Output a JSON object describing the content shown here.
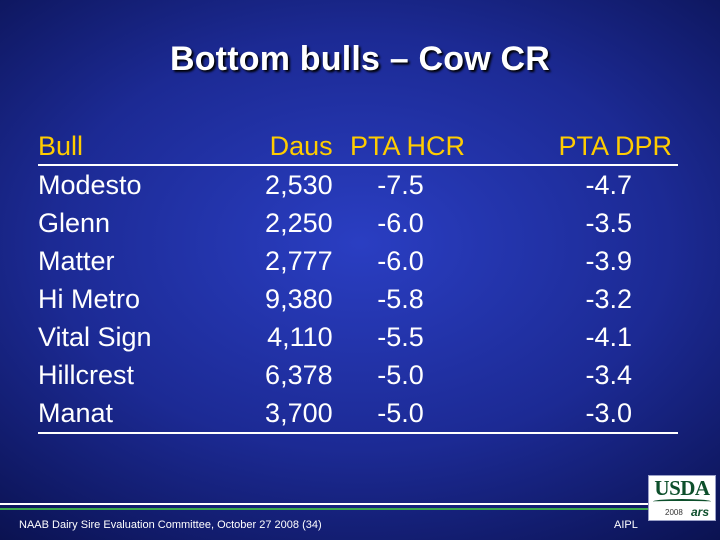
{
  "slide": {
    "title": "Bottom bulls – Cow CR"
  },
  "table": {
    "headers": {
      "bull": "Bull",
      "daus": "Daus",
      "pta_hcr": "PTA HCR",
      "pta_dpr": "PTA DPR"
    },
    "rows": [
      {
        "bull": "Modesto",
        "daus": "2,530",
        "pta_hcr": "-7.5",
        "pta_dpr": "-4.7"
      },
      {
        "bull": "Glenn",
        "daus": "2,250",
        "pta_hcr": "-6.0",
        "pta_dpr": "-3.5"
      },
      {
        "bull": "Matter",
        "daus": "2,777",
        "pta_hcr": "-6.0",
        "pta_dpr": "-3.9"
      },
      {
        "bull": "Hi Metro",
        "daus": "9,380",
        "pta_hcr": "-5.8",
        "pta_dpr": "-3.2"
      },
      {
        "bull": "Vital Sign",
        "daus": "4,110",
        "pta_hcr": "-5.5",
        "pta_dpr": "-4.1"
      },
      {
        "bull": "Hillcrest",
        "daus": "6,378",
        "pta_hcr": "-5.0",
        "pta_dpr": "-3.4"
      },
      {
        "bull": "Manat",
        "daus": "3,700",
        "pta_hcr": "-5.0",
        "pta_dpr": "-3.0"
      }
    ]
  },
  "footer": {
    "left_text": "NAAB Dairy Sire Evaluation Committee, October 27 2008 (34)",
    "right_text": "AIPL",
    "logo_usda": "USDA",
    "logo_year": "2008",
    "logo_ars": "ars"
  },
  "colors": {
    "header_text": "#ffcc00",
    "body_text": "#ffffff",
    "background": "#1c2a94",
    "footer_accent": "#3ca84c"
  }
}
